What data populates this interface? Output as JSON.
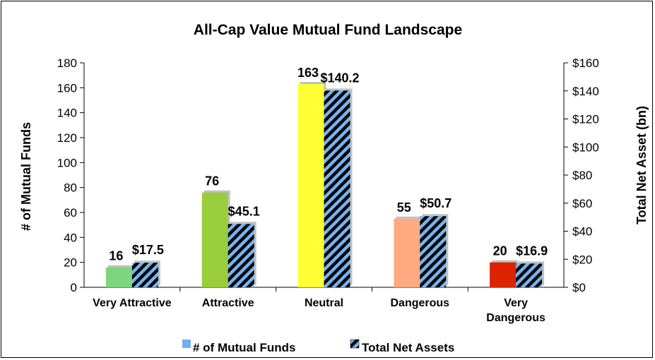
{
  "chart_data": {
    "type": "bar",
    "title": "All-Cap Value Mutual Fund Landscape",
    "categories": [
      "Very Attractive",
      "Attractive",
      "Neutral",
      "Dangerous",
      "Very Dangerous"
    ],
    "series": [
      {
        "name": "# of Mutual Funds",
        "axis": "left",
        "values": [
          16,
          76,
          163,
          55,
          20
        ],
        "labels": [
          "16",
          "76",
          "163",
          "55",
          "20"
        ],
        "colors": [
          "#7dd67d",
          "#9acd3c",
          "#ffff33",
          "#ffaa80",
          "#dd2200"
        ]
      },
      {
        "name": "Total Net Assets",
        "axis": "right",
        "values": [
          17.5,
          45.1,
          140.2,
          50.7,
          16.9
        ],
        "labels": [
          "$17.5",
          "$45.1",
          "$140.2",
          "$50.7",
          "$16.9"
        ],
        "pattern": "diagonal stripes black/light blue"
      }
    ],
    "ylabel": "# of Mutual Funds",
    "ylim": [
      0,
      180
    ],
    "yticks": [
      "0",
      "20",
      "40",
      "60",
      "80",
      "100",
      "120",
      "140",
      "160",
      "180"
    ],
    "y2label": "Total Net Asset (bn)",
    "y2lim": [
      0,
      160
    ],
    "y2ticks": [
      "$0",
      "$20",
      "$40",
      "$60",
      "$80",
      "$100",
      "$120",
      "$140",
      "$160"
    ],
    "legend_position": "bottom",
    "grid": false
  },
  "legend": {
    "funds_label": "# of Mutual Funds",
    "assets_label": "Total Net Assets"
  },
  "colors": {
    "stripe_dark": "#000000",
    "stripe_light": "#74b4f0",
    "legend_funds": "#6fb0ee"
  }
}
